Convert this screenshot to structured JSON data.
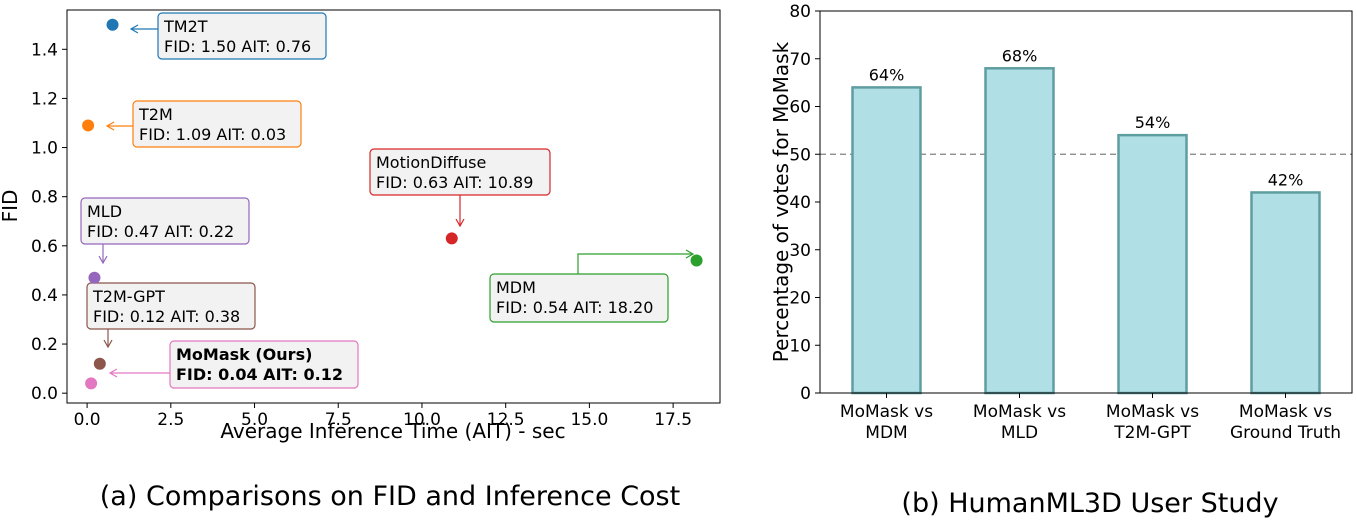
{
  "chart_data": [
    {
      "type": "scatter",
      "caption": "(a) Comparisons on FID and Inference Cost",
      "xlabel": "Average Inference Time (AIT) - sec",
      "ylabel": "FID",
      "xlim": [
        -0.6,
        18.9
      ],
      "ylim": [
        -0.04,
        1.56
      ],
      "xticks": [
        0.0,
        2.5,
        5.0,
        7.5,
        10.0,
        12.5,
        15.0,
        17.5
      ],
      "xtick_labels": [
        "0.0",
        "2.5",
        "5.0",
        "7.5",
        "10.0",
        "12.5",
        "15.0",
        "17.5"
      ],
      "yticks": [
        0.0,
        0.2,
        0.4,
        0.6,
        0.8,
        1.0,
        1.2,
        1.4
      ],
      "ytick_labels": [
        "0.0",
        "0.2",
        "0.4",
        "0.6",
        "0.8",
        "1.0",
        "1.2",
        "1.4"
      ],
      "grid": false,
      "points": [
        {
          "name": "TM2T",
          "label": "FID: 1.50 AIT: 0.76",
          "x": 0.76,
          "y": 1.5,
          "color": "#1f77b4",
          "bold": false
        },
        {
          "name": "T2M",
          "label": "FID: 1.09 AIT: 0.03",
          "x": 0.03,
          "y": 1.09,
          "color": "#ff7f0e",
          "bold": false
        },
        {
          "name": "MotionDiffuse",
          "label": "FID: 0.63 AIT: 10.89",
          "x": 10.89,
          "y": 0.63,
          "color": "#d62728",
          "bold": false
        },
        {
          "name": "MLD",
          "label": "FID: 0.47 AIT: 0.22",
          "x": 0.22,
          "y": 0.47,
          "color": "#9467bd",
          "bold": false
        },
        {
          "name": "MDM",
          "label": "FID: 0.54 AIT: 18.20",
          "x": 18.2,
          "y": 0.54,
          "color": "#2ca02c",
          "bold": false
        },
        {
          "name": "T2M-GPT",
          "label": "FID: 0.12 AIT: 0.38",
          "x": 0.38,
          "y": 0.12,
          "color": "#8c564b",
          "bold": false
        },
        {
          "name": "MoMask (Ours)",
          "label": "FID: 0.04 AIT: 0.12",
          "x": 0.12,
          "y": 0.04,
          "color": "#e377c2",
          "bold": true
        }
      ]
    },
    {
      "type": "bar",
      "caption": "(b) HumanML3D User Study",
      "xlabel": "",
      "ylabel": "Percentage of votes for MoMask",
      "ylim": [
        0,
        80
      ],
      "yticks": [
        0,
        10,
        20,
        30,
        40,
        50,
        60,
        70,
        80
      ],
      "ytick_labels": [
        "0",
        "10",
        "20",
        "30",
        "40",
        "50",
        "60",
        "70",
        "80"
      ],
      "reference_line": 50,
      "bar_color": "#b0e0e6",
      "bar_edge_color": "#5f9ea0",
      "categories": [
        [
          "MoMask vs",
          "MDM"
        ],
        [
          "MoMask vs",
          "MLD"
        ],
        [
          "MoMask vs",
          "T2M-GPT"
        ],
        [
          "MoMask vs",
          "Ground Truth"
        ]
      ],
      "values": [
        64,
        68,
        54,
        42
      ],
      "data_labels": [
        "64%",
        "68%",
        "54%",
        "42%"
      ]
    }
  ]
}
